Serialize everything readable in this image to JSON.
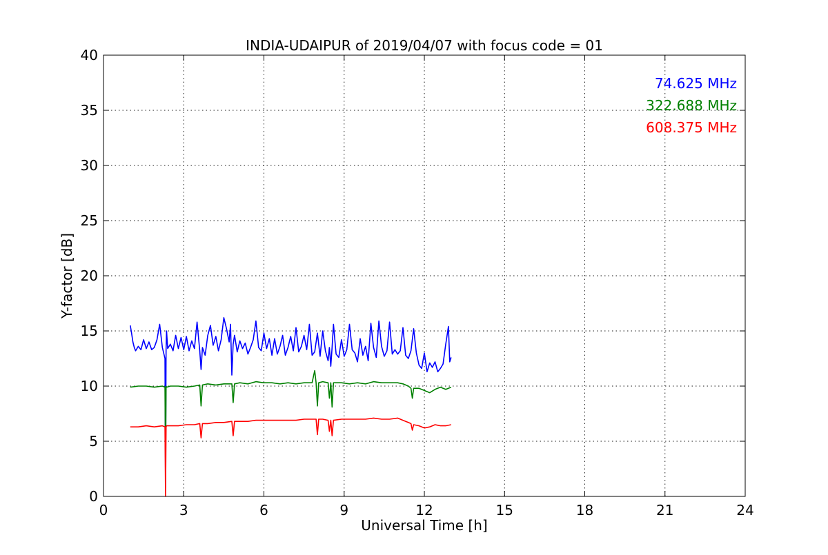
{
  "chart_data": {
    "type": "line",
    "title": "INDIA-UDAIPUR of 2019/04/07 with focus code = 01",
    "xlabel": "Universal Time [h]",
    "ylabel": "Y-factor [dB]",
    "xlim": [
      0,
      24
    ],
    "ylim": [
      0,
      40
    ],
    "xticks": [
      0,
      3,
      6,
      9,
      12,
      15,
      18,
      21,
      24
    ],
    "yticks": [
      0,
      5,
      10,
      15,
      20,
      25,
      30,
      35,
      40
    ],
    "grid": true,
    "legend_placement": "top-right",
    "series": [
      {
        "name": "74.625 MHz",
        "color": "#0000ff",
        "x": [
          1.0,
          1.05,
          1.1,
          1.15,
          1.2,
          1.3,
          1.4,
          1.5,
          1.6,
          1.7,
          1.8,
          1.9,
          2.0,
          2.1,
          2.2,
          2.25,
          2.3,
          2.32,
          2.34,
          2.36,
          2.4,
          2.5,
          2.6,
          2.7,
          2.8,
          2.9,
          3.0,
          3.1,
          3.2,
          3.3,
          3.4,
          3.5,
          3.6,
          3.65,
          3.7,
          3.8,
          3.9,
          4.0,
          4.1,
          4.2,
          4.3,
          4.4,
          4.5,
          4.6,
          4.7,
          4.75,
          4.8,
          4.85,
          4.9,
          5.0,
          5.1,
          5.2,
          5.3,
          5.4,
          5.5,
          5.6,
          5.7,
          5.8,
          5.9,
          6.0,
          6.1,
          6.2,
          6.3,
          6.4,
          6.5,
          6.6,
          6.7,
          6.8,
          6.9,
          7.0,
          7.1,
          7.2,
          7.3,
          7.4,
          7.5,
          7.6,
          7.7,
          7.8,
          7.9,
          8.0,
          8.1,
          8.2,
          8.3,
          8.4,
          8.45,
          8.5,
          8.55,
          8.6,
          8.7,
          8.8,
          8.9,
          9.0,
          9.1,
          9.2,
          9.3,
          9.4,
          9.5,
          9.6,
          9.7,
          9.8,
          9.9,
          10.0,
          10.1,
          10.2,
          10.3,
          10.4,
          10.5,
          10.6,
          10.7,
          10.8,
          10.9,
          11.0,
          11.1,
          11.2,
          11.3,
          11.4,
          11.5,
          11.6,
          11.7,
          11.8,
          11.9,
          12.0,
          12.1,
          12.2,
          12.3,
          12.4,
          12.5,
          12.6,
          12.7,
          12.8,
          12.9,
          12.95,
          13.0
        ],
        "y": [
          15.5,
          14.8,
          14.0,
          13.5,
          13.2,
          13.6,
          13.3,
          14.2,
          13.4,
          14.0,
          13.3,
          13.5,
          14.2,
          15.6,
          13.5,
          13.0,
          12.5,
          0.8,
          13.3,
          15.0,
          13.4,
          13.8,
          13.2,
          14.6,
          13.4,
          14.4,
          13.3,
          14.5,
          13.2,
          14.1,
          13.4,
          15.8,
          13.2,
          11.5,
          13.5,
          12.8,
          14.6,
          15.5,
          13.7,
          14.5,
          13.2,
          14.2,
          16.2,
          15.2,
          14.0,
          15.6,
          11.0,
          13.8,
          14.6,
          13.1,
          14.1,
          13.4,
          13.9,
          12.9,
          13.5,
          14.2,
          15.9,
          13.5,
          13.2,
          14.8,
          13.4,
          14.3,
          12.8,
          14.3,
          12.9,
          13.6,
          14.6,
          12.8,
          13.5,
          14.5,
          13.2,
          15.3,
          13.1,
          13.6,
          14.6,
          13.3,
          15.6,
          12.8,
          13.1,
          14.8,
          12.7,
          15.0,
          13.2,
          12.3,
          13.5,
          11.8,
          13.5,
          15.6,
          12.9,
          12.6,
          14.2,
          12.7,
          13.3,
          15.6,
          13.3,
          13.0,
          12.2,
          14.3,
          12.8,
          13.6,
          12.3,
          15.7,
          13.5,
          12.6,
          15.9,
          13.6,
          12.7,
          13.2,
          15.8,
          12.9,
          13.3,
          12.9,
          13.2,
          15.3,
          12.8,
          12.5,
          13.2,
          15.2,
          13.0,
          11.9,
          11.6,
          13.0,
          11.3,
          12.1,
          11.7,
          12.2,
          11.3,
          11.6,
          12.0,
          13.8,
          15.4,
          12.2,
          12.6
        ]
      },
      {
        "name": "322.688 MHz",
        "color": "#008000",
        "x": [
          1.0,
          1.3,
          1.6,
          1.9,
          2.2,
          2.3,
          2.32,
          2.34,
          2.36,
          2.5,
          2.8,
          3.1,
          3.4,
          3.6,
          3.65,
          3.7,
          3.9,
          4.2,
          4.5,
          4.8,
          4.85,
          4.9,
          5.1,
          5.4,
          5.7,
          6.0,
          6.3,
          6.6,
          6.9,
          7.2,
          7.5,
          7.8,
          7.9,
          7.95,
          8.0,
          8.05,
          8.2,
          8.4,
          8.45,
          8.5,
          8.55,
          8.6,
          8.9,
          9.2,
          9.5,
          9.8,
          10.1,
          10.4,
          10.7,
          11.0,
          11.2,
          11.4,
          11.5,
          11.55,
          11.6,
          11.8,
          12.0,
          12.2,
          12.4,
          12.6,
          12.8,
          13.0
        ],
        "y": [
          9.9,
          10.0,
          10.0,
          9.9,
          10.0,
          9.9,
          2.5,
          10.0,
          9.9,
          10.0,
          10.0,
          9.9,
          10.0,
          10.1,
          8.2,
          10.1,
          10.2,
          10.1,
          10.2,
          10.2,
          8.5,
          10.2,
          10.3,
          10.2,
          10.4,
          10.3,
          10.3,
          10.2,
          10.3,
          10.2,
          10.3,
          10.3,
          11.4,
          10.3,
          8.2,
          10.3,
          10.4,
          10.3,
          8.9,
          10.3,
          8.1,
          10.3,
          10.3,
          10.2,
          10.3,
          10.2,
          10.4,
          10.3,
          10.3,
          10.3,
          10.2,
          10.0,
          9.8,
          8.9,
          9.8,
          9.8,
          9.6,
          9.4,
          9.7,
          9.9,
          9.7,
          9.9
        ]
      },
      {
        "name": "608.375 MHz",
        "color": "#ff0000",
        "x": [
          1.0,
          1.3,
          1.6,
          1.9,
          2.2,
          2.3,
          2.32,
          2.34,
          2.36,
          2.5,
          2.8,
          3.1,
          3.4,
          3.6,
          3.65,
          3.7,
          3.9,
          4.2,
          4.5,
          4.8,
          4.85,
          4.9,
          5.1,
          5.4,
          5.7,
          6.0,
          6.3,
          6.6,
          6.9,
          7.2,
          7.5,
          7.8,
          7.95,
          8.0,
          8.05,
          8.2,
          8.4,
          8.45,
          8.5,
          8.55,
          8.6,
          8.9,
          9.2,
          9.5,
          9.8,
          10.1,
          10.4,
          10.7,
          11.0,
          11.2,
          11.4,
          11.5,
          11.55,
          11.6,
          11.8,
          12.0,
          12.2,
          12.4,
          12.6,
          12.8,
          13.0
        ],
        "y": [
          6.3,
          6.3,
          6.4,
          6.3,
          6.4,
          6.3,
          0.0,
          6.3,
          6.4,
          6.4,
          6.4,
          6.5,
          6.5,
          6.6,
          5.3,
          6.6,
          6.6,
          6.7,
          6.7,
          6.8,
          5.5,
          6.8,
          6.8,
          6.8,
          6.9,
          6.9,
          6.9,
          6.9,
          6.9,
          6.9,
          7.0,
          7.0,
          7.0,
          5.6,
          7.0,
          7.0,
          6.9,
          5.9,
          6.9,
          5.5,
          6.9,
          7.0,
          7.0,
          7.0,
          7.0,
          7.1,
          7.0,
          7.0,
          7.1,
          6.9,
          6.7,
          6.6,
          6.0,
          6.5,
          6.4,
          6.2,
          6.3,
          6.5,
          6.4,
          6.4,
          6.5
        ]
      }
    ]
  }
}
